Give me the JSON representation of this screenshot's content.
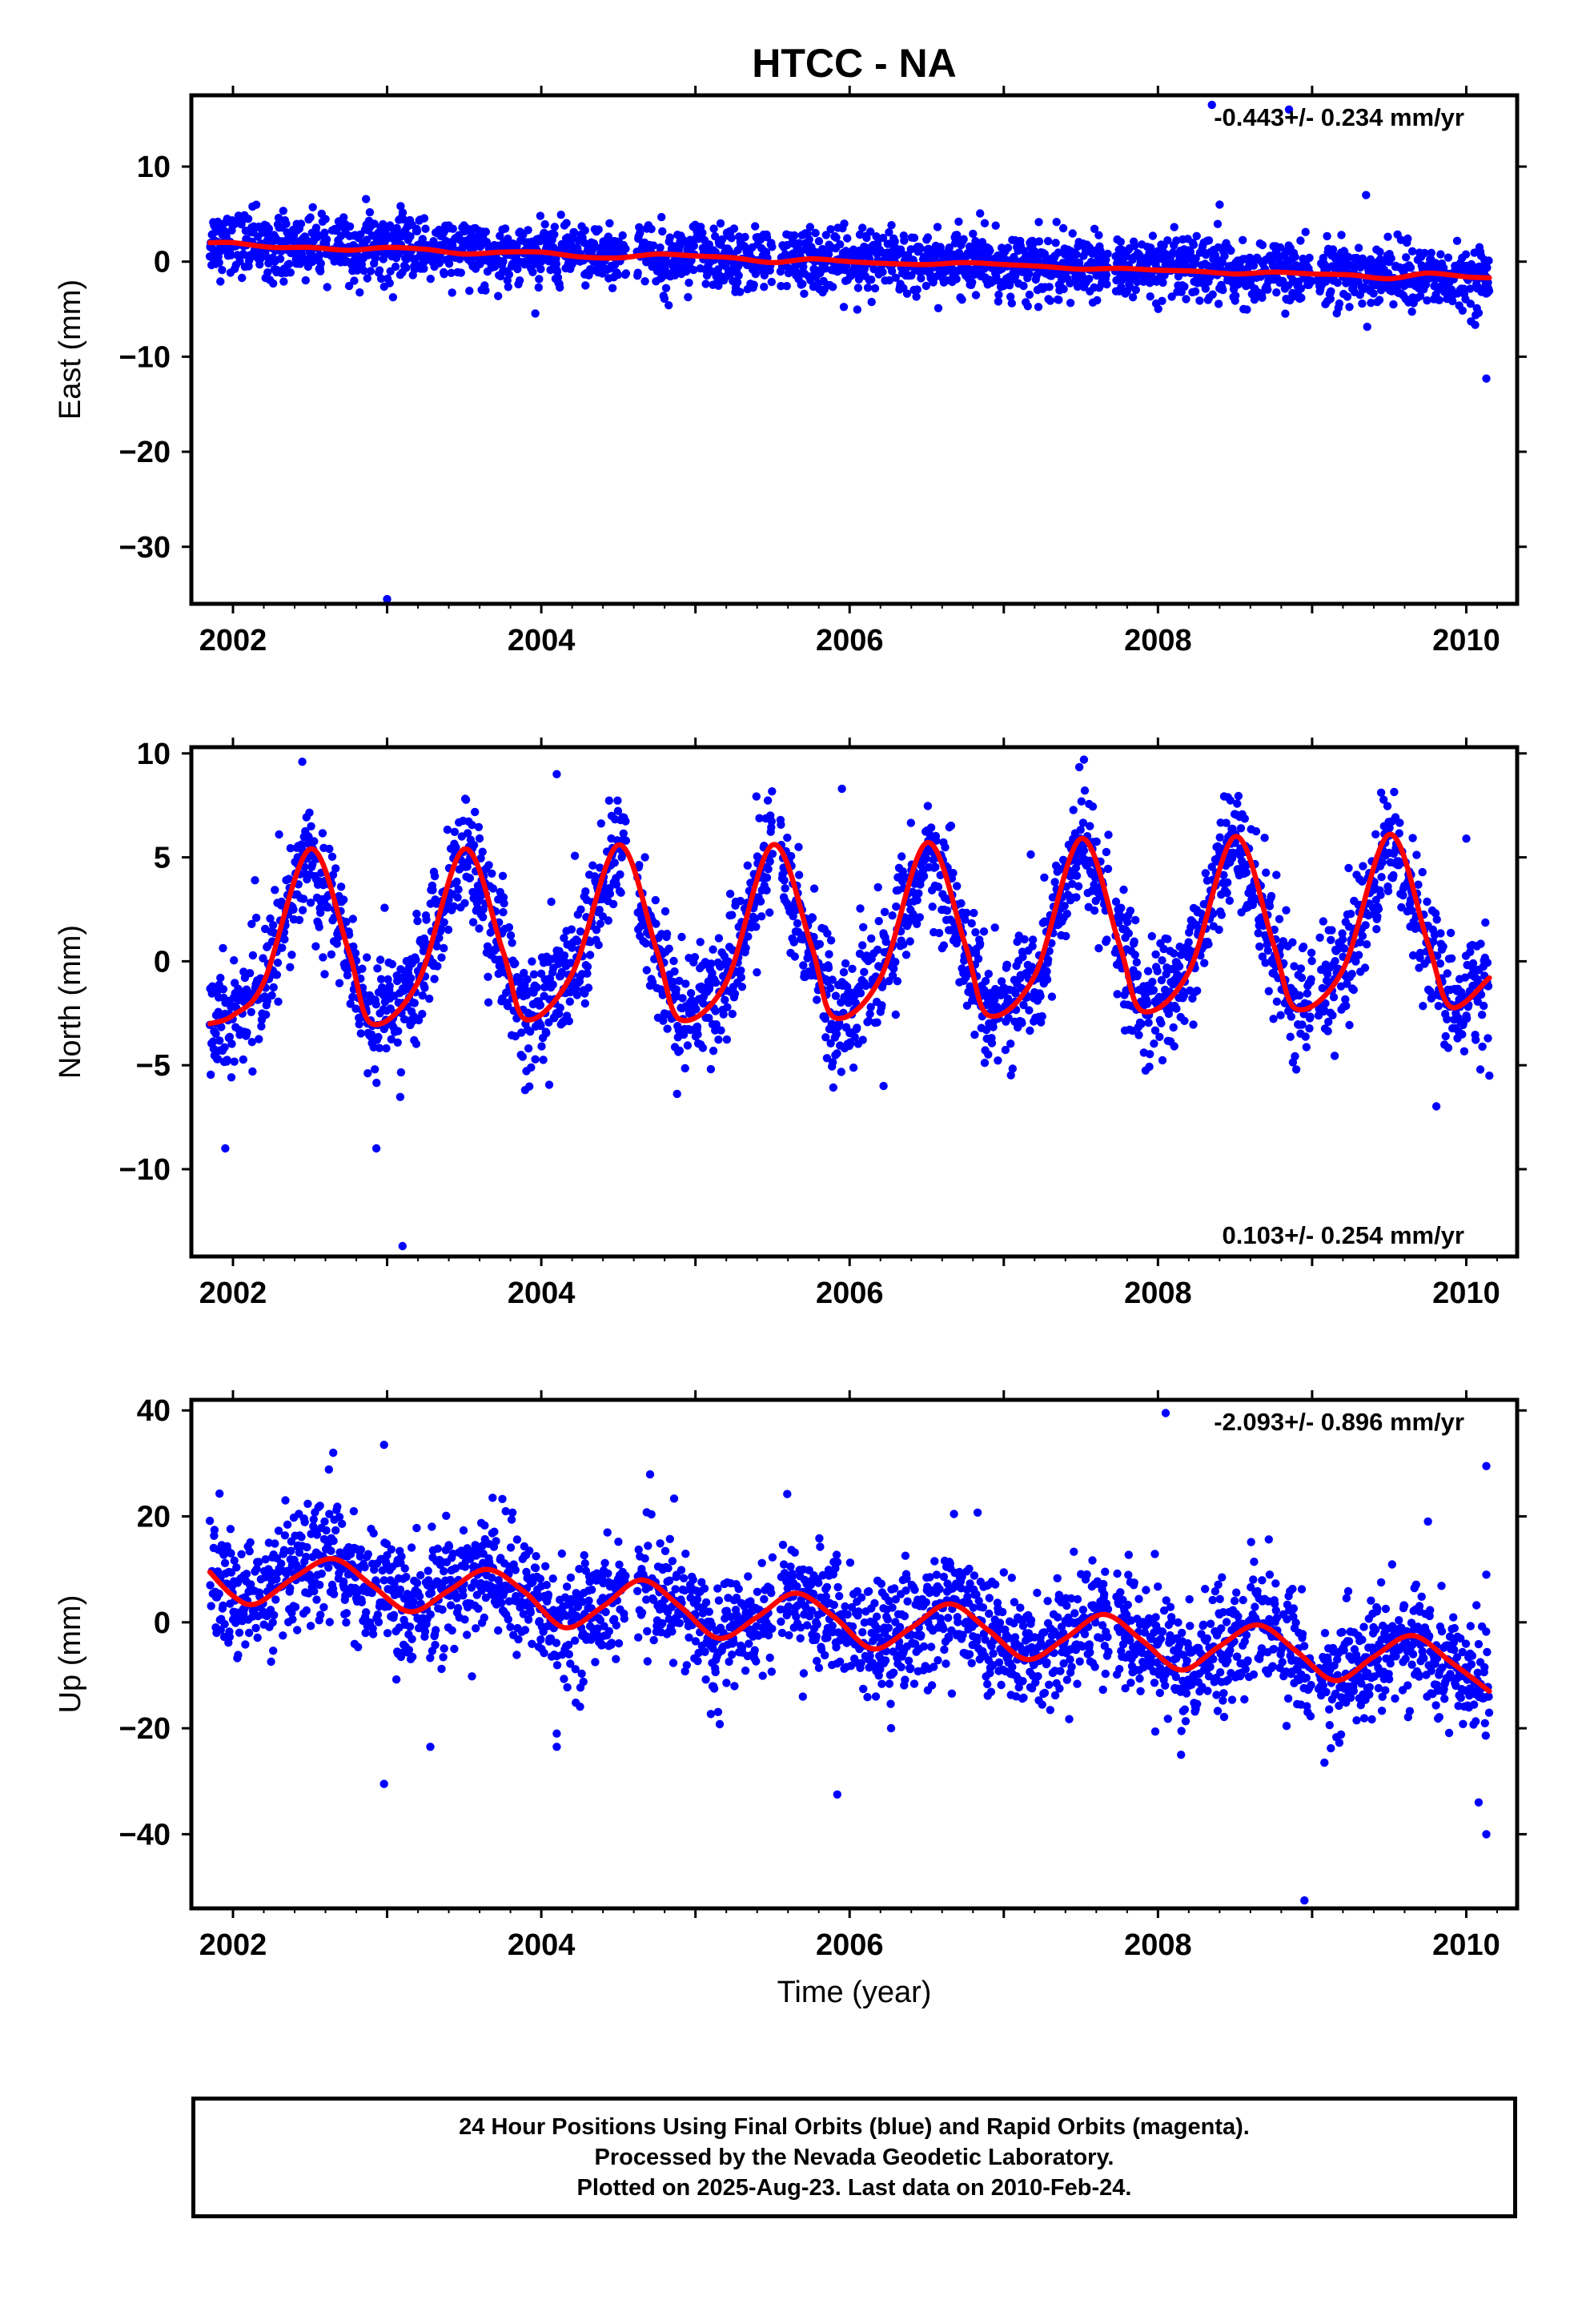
{
  "title": "HTCC - NA",
  "xlabel": "Time (year)",
  "colors": {
    "final_orbits": "#0000ff",
    "rapid_orbits": "#ff00ff",
    "model": "#ff0000",
    "axis": "#000000"
  },
  "footer": {
    "line1": "24 Hour Positions Using Final Orbits (blue) and Rapid Orbits (magenta).",
    "line2": "Processed by the Nevada Geodetic Laboratory.",
    "line3": "Plotted on 2025-Aug-23. Last data on 2010-Feb-24."
  },
  "chart_data": [
    {
      "type": "scatter",
      "ylabel": "East (mm)",
      "rate": "-0.443+/- 0.234 mm/yr",
      "rate_position": "top-right",
      "xlim": [
        2001.73,
        2010.33
      ],
      "ylim": [
        -36,
        17.5
      ],
      "xticks": [
        2002,
        2004,
        2006,
        2008,
        2010
      ],
      "yticks": [
        10,
        0,
        -10,
        -20,
        -30
      ],
      "series": [
        {
          "role": "data",
          "style": "points",
          "scatter_sd": 1.6,
          "x": [
            2001.85,
            2002.0,
            2002.25,
            2002.5,
            2002.75,
            2003.0,
            2003.25,
            2003.5,
            2003.75,
            2004.0,
            2004.25,
            2004.5,
            2004.75,
            2005.0,
            2005.25,
            2005.5,
            2005.75,
            2006.0,
            2006.25,
            2006.5,
            2006.75,
            2007.0,
            2007.25,
            2007.5,
            2007.75,
            2008.0,
            2008.25,
            2008.5,
            2008.75,
            2009.0,
            2009.25,
            2009.5,
            2009.75,
            2010.0,
            2010.15
          ],
          "y": [
            2.2,
            2.0,
            1.6,
            1.5,
            1.3,
            1.6,
            1.5,
            1.2,
            0.9,
            1.0,
            0.7,
            0.6,
            0.9,
            0.6,
            0.4,
            0.2,
            0.2,
            0.0,
            -0.1,
            -0.2,
            -0.2,
            -0.4,
            -0.5,
            -0.7,
            -0.8,
            -0.9,
            -1.0,
            -1.1,
            -1.2,
            -1.3,
            -1.4,
            -1.5,
            -1.6,
            -1.8,
            -1.9
          ]
        },
        {
          "role": "outliers",
          "style": "points",
          "x": [
            2003.0,
            2010.13,
            2008.4,
            2008.85,
            2009.35,
            2008.35
          ],
          "y": [
            -35.5,
            -12.3,
            6.0,
            16.0,
            7.0,
            16.5
          ]
        },
        {
          "role": "model",
          "style": "line",
          "x": [
            2001.85,
            2002.0,
            2002.25,
            2002.5,
            2002.75,
            2003.0,
            2003.25,
            2003.5,
            2003.75,
            2004.0,
            2004.25,
            2004.5,
            2004.75,
            2005.0,
            2005.25,
            2005.5,
            2005.75,
            2006.0,
            2006.25,
            2006.5,
            2006.75,
            2007.0,
            2007.25,
            2007.5,
            2007.75,
            2008.0,
            2008.25,
            2008.5,
            2008.75,
            2009.0,
            2009.25,
            2009.5,
            2009.75,
            2010.0,
            2010.15
          ],
          "y": [
            2.0,
            2.0,
            1.5,
            1.5,
            1.2,
            1.5,
            1.3,
            0.8,
            1.0,
            1.0,
            0.5,
            0.4,
            0.8,
            0.6,
            0.4,
            -0.1,
            0.3,
            0.0,
            -0.2,
            -0.3,
            -0.1,
            -0.3,
            -0.5,
            -0.8,
            -0.7,
            -0.9,
            -1.0,
            -1.3,
            -1.1,
            -1.3,
            -1.4,
            -1.8,
            -1.2,
            -1.6,
            -1.7
          ]
        }
      ]
    },
    {
      "type": "scatter",
      "ylabel": "North (mm)",
      "rate": "0.103+/- 0.254 mm/yr",
      "rate_position": "bottom-right",
      "xlim": [
        2001.73,
        2010.33
      ],
      "ylim": [
        -14.2,
        10.3
      ],
      "xticks": [
        2002,
        2004,
        2006,
        2008,
        2010
      ],
      "yticks": [
        10,
        5,
        0,
        -5,
        -10
      ],
      "series": [
        {
          "role": "data",
          "style": "points",
          "scatter_sd": 1.4,
          "x": [
            2001.85,
            2002.0,
            2002.2,
            2002.5,
            2002.75,
            2002.9,
            2003.2,
            2003.5,
            2003.75,
            2003.9,
            2004.2,
            2004.5,
            2004.75,
            2004.9,
            2005.2,
            2005.5,
            2005.75,
            2005.9,
            2006.2,
            2006.5,
            2006.75,
            2006.9,
            2007.2,
            2007.5,
            2007.75,
            2007.9,
            2008.2,
            2008.5,
            2008.75,
            2008.9,
            2009.2,
            2009.5,
            2009.75,
            2009.9,
            2010.15
          ],
          "y": [
            -3.0,
            -2.6,
            -1.0,
            5.4,
            0.5,
            -3.0,
            -1.0,
            5.4,
            0.5,
            -2.8,
            -0.6,
            5.6,
            0.5,
            -2.8,
            -1.0,
            5.6,
            0.8,
            -2.7,
            -0.8,
            5.7,
            0.8,
            -2.6,
            -0.7,
            5.9,
            0.8,
            -2.4,
            -0.5,
            6.0,
            0.8,
            -2.3,
            -0.4,
            6.1,
            0.9,
            -2.2,
            -0.8
          ]
        },
        {
          "role": "outliers",
          "style": "points",
          "x": [
            2001.95,
            2002.93,
            2003.1,
            2004.1,
            2005.95,
            2006.22,
            2007.52,
            2010.0,
            2010.15,
            2002.45
          ],
          "y": [
            -9.0,
            -9.0,
            -13.7,
            9.0,
            8.3,
            -6.0,
            9.7,
            5.9,
            -5.5,
            9.6
          ]
        },
        {
          "role": "model",
          "style": "line",
          "x": [
            2001.85,
            2002.0,
            2002.2,
            2002.5,
            2002.75,
            2002.9,
            2003.2,
            2003.5,
            2003.75,
            2003.9,
            2004.2,
            2004.5,
            2004.75,
            2004.9,
            2005.2,
            2005.5,
            2005.75,
            2005.9,
            2006.2,
            2006.5,
            2006.75,
            2006.9,
            2007.2,
            2007.5,
            2007.75,
            2007.9,
            2008.2,
            2008.5,
            2008.75,
            2008.9,
            2009.2,
            2009.5,
            2009.75,
            2009.9,
            2010.15
          ],
          "y": [
            -3.0,
            -2.6,
            -1.0,
            5.4,
            0.5,
            -3.0,
            -1.0,
            5.4,
            0.5,
            -2.8,
            -0.6,
            5.6,
            0.5,
            -2.8,
            -1.0,
            5.6,
            0.8,
            -2.7,
            -0.8,
            5.7,
            0.8,
            -2.6,
            -0.7,
            5.9,
            0.8,
            -2.4,
            -0.5,
            6.0,
            0.8,
            -2.3,
            -0.4,
            6.1,
            0.9,
            -2.2,
            -0.8
          ]
        }
      ]
    },
    {
      "type": "scatter",
      "ylabel": "Up (mm)",
      "rate": "-2.093+/- 0.896 mm/yr",
      "rate_position": "top-right",
      "xlim": [
        2001.73,
        2010.33
      ],
      "ylim": [
        -54,
        42
      ],
      "xticks": [
        2002,
        2004,
        2006,
        2008,
        2010
      ],
      "yticks": [
        40,
        20,
        0,
        -20,
        -40
      ],
      "series": [
        {
          "role": "data",
          "style": "points",
          "scatter_sd": 5.5,
          "x": [
            2001.85,
            2002.0,
            2002.15,
            2002.4,
            2002.65,
            2002.9,
            2003.15,
            2003.4,
            2003.65,
            2003.9,
            2004.15,
            2004.4,
            2004.65,
            2004.9,
            2005.15,
            2005.4,
            2005.65,
            2005.9,
            2006.15,
            2006.4,
            2006.65,
            2006.9,
            2007.15,
            2007.4,
            2007.65,
            2007.9,
            2008.15,
            2008.4,
            2008.65,
            2008.9,
            2009.15,
            2009.4,
            2009.65,
            2009.9,
            2010.15
          ],
          "y": [
            9.5,
            5.0,
            3.5,
            8.5,
            12.0,
            7.0,
            2.0,
            6.0,
            10.0,
            5.5,
            -1.0,
            3.0,
            8.0,
            3.0,
            -3.0,
            1.0,
            5.5,
            1.0,
            -5.0,
            -1.0,
            3.5,
            -1.5,
            -7.0,
            -3.0,
            1.5,
            -3.5,
            -9.0,
            -4.5,
            -0.5,
            -5.5,
            -11.0,
            -6.5,
            -2.5,
            -7.5,
            -13.0
          ]
        },
        {
          "role": "outliers",
          "style": "points",
          "x": [
            2002.65,
            2002.98,
            2003.28,
            2002.98,
            2004.1,
            2004.1,
            2005.92,
            2008.05,
            2008.15,
            2008.95,
            2009.08,
            2010.08,
            2010.13,
            2010.13,
            2010.13
          ],
          "y": [
            32.0,
            33.5,
            -23.5,
            -30.5,
            -21.0,
            -23.5,
            -32.5,
            39.5,
            -25.0,
            -52.5,
            -26.5,
            -34.0,
            -40.0,
            29.5,
            9.0
          ]
        },
        {
          "role": "model",
          "style": "line",
          "x": [
            2001.85,
            2002.0,
            2002.15,
            2002.4,
            2002.65,
            2002.9,
            2003.15,
            2003.4,
            2003.65,
            2003.9,
            2004.15,
            2004.4,
            2004.65,
            2004.9,
            2005.15,
            2005.4,
            2005.65,
            2005.9,
            2006.15,
            2006.4,
            2006.65,
            2006.9,
            2007.15,
            2007.4,
            2007.65,
            2007.9,
            2008.15,
            2008.4,
            2008.65,
            2008.9,
            2009.15,
            2009.4,
            2009.65,
            2009.9,
            2010.15
          ],
          "y": [
            9.5,
            5.0,
            3.5,
            8.5,
            12.0,
            7.0,
            2.0,
            6.0,
            10.0,
            5.5,
            -1.0,
            3.0,
            8.0,
            3.0,
            -3.0,
            1.0,
            5.5,
            1.0,
            -5.0,
            -1.0,
            3.5,
            -1.5,
            -7.0,
            -3.0,
            1.5,
            -3.5,
            -9.0,
            -4.5,
            -0.5,
            -5.5,
            -11.0,
            -6.5,
            -2.5,
            -7.5,
            -13.0
          ]
        }
      ]
    }
  ]
}
